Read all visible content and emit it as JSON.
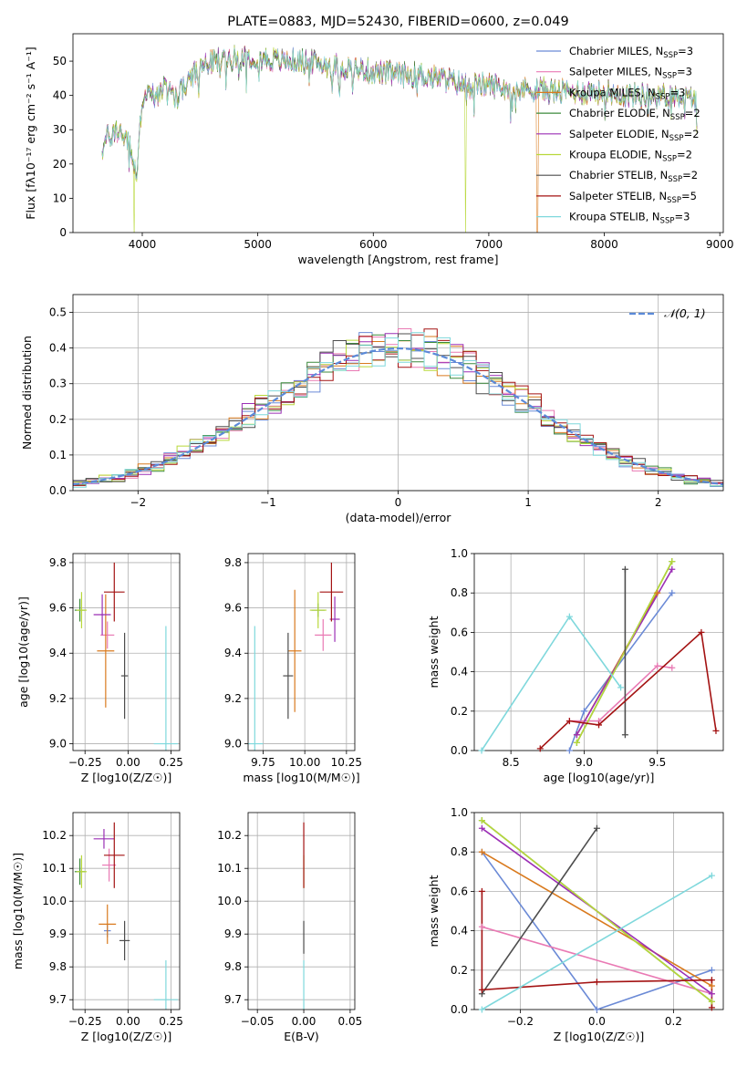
{
  "colors": {
    "chabrier_miles": "#6b8ad6",
    "salpeter_miles": "#e97ab4",
    "kroupa_miles": "#d97a1e",
    "chabrier_elodie": "#3c8a3c",
    "salpeter_elodie": "#9b2fb5",
    "kroupa_elodie": "#b8d83a",
    "chabrier_stelib": "#4d4d4d",
    "salpeter_stelib": "#a31212",
    "kroupa_stelib": "#7fd8dc",
    "gauss": "#5b8ad8"
  },
  "chart_data": [
    {
      "id": "spectrum",
      "type": "line",
      "title": "PLATE=0883, MJD=52430, FIBERID=0600, z=0.049",
      "xlabel": "wavelength [Angstrom, rest frame]",
      "ylabel": "Flux [fλ10⁻¹⁷ erg cm⁻² s⁻¹ A⁻¹]",
      "xlim": [
        3400,
        9030
      ],
      "ylim": [
        0,
        58
      ],
      "xticks": [
        4000,
        5000,
        6000,
        7000,
        8000,
        9000
      ],
      "yticks": [
        0,
        10,
        20,
        30,
        40,
        50
      ],
      "legend_position": "top-right",
      "legend": [
        "Chabrier MILES, N_SSP=3",
        "Salpeter MILES, N_SSP=3",
        "Kroupa MILES, N_SSP=3",
        "Chabrier ELODIE, N_SSP=2",
        "Salpeter ELODIE, N_SSP=2",
        "Kroupa ELODIE, N_SSP=2",
        "Chabrier STELIB, N_SSP=2",
        "Salpeter STELIB, N_SSP=5",
        "Kroupa STELIB, N_SSP=3"
      ],
      "legend_main": [
        "Chabrier MILES, N",
        "Salpeter MILES, N",
        "Kroupa MILES, N",
        "Chabrier ELODIE, N",
        "Salpeter ELODIE, N",
        "Kroupa ELODIE, N",
        "Chabrier STELIB, N",
        "Salpeter STELIB, N",
        "Kroupa STELIB, N"
      ],
      "legend_sub": "SSP",
      "legend_tail": [
        "=3",
        "=3",
        "=3",
        "=2",
        "=2",
        "=2",
        "=2",
        "=5",
        "=3"
      ],
      "continuum_x": [
        3650,
        3700,
        3800,
        3900,
        3950,
        4000,
        4100,
        4200,
        4300,
        4400,
        4500,
        4600,
        4800,
        5000,
        5200,
        5400,
        5600,
        5800,
        6000,
        6200,
        6400,
        6600,
        6800,
        7000,
        7200,
        7400,
        7600,
        7800,
        8000,
        8200,
        8400,
        8600,
        8800
      ],
      "continuum_y": [
        24,
        28,
        30,
        25,
        15,
        40,
        40,
        42,
        40,
        44,
        48,
        50,
        51,
        51,
        50,
        50,
        49,
        48,
        47,
        46,
        46,
        45,
        43,
        43,
        42,
        42,
        41,
        41,
        41,
        40,
        40,
        40,
        39
      ],
      "dropouts": [
        {
          "model": "kroupa_elodie",
          "wavelength": 3930
        },
        {
          "model": "kroupa_elodie",
          "wavelength": 6800
        },
        {
          "model": "kroupa_miles",
          "wavelength": 7420
        }
      ]
    },
    {
      "id": "residuals",
      "type": "histogram",
      "xlabel": "(data-model)/error",
      "ylabel": "Normed distribution",
      "xlim": [
        -2.5,
        2.5
      ],
      "ylim": [
        0,
        0.55
      ],
      "xticks": [
        -2,
        -1,
        0,
        1,
        2
      ],
      "yticks": [
        0.0,
        0.1,
        0.2,
        0.3,
        0.4,
        0.5
      ],
      "legend_position": "top-right",
      "gauss_label": "𝒩(0, 1)",
      "bin_width": 0.1
    },
    {
      "id": "age_vs_Z",
      "type": "errorbar",
      "xlabel": "Z [log10(Z/Z☉)]",
      "ylabel": "age  [log10(age/yr)]",
      "xlim": [
        -0.32,
        0.3
      ],
      "ylim": [
        8.97,
        9.84
      ],
      "xticks": [
        -0.25,
        0.0,
        0.25
      ],
      "yticks": [
        9.0,
        9.2,
        9.4,
        9.6,
        9.8
      ],
      "points": [
        {
          "model": "chabrier_miles",
          "x": -0.15,
          "y": 9.57,
          "xerr": 0.01,
          "yerr": 0.0
        },
        {
          "model": "salpeter_miles",
          "x": -0.12,
          "y": 9.48,
          "xerr": 0.04,
          "yerr": 0.06
        },
        {
          "model": "kroupa_miles",
          "x": -0.13,
          "y": 9.41,
          "xerr": 0.05,
          "yerr": 0.25
        },
        {
          "model": "chabrier_elodie",
          "x": -0.28,
          "y": 9.59,
          "xerr": 0.03,
          "yerr": 0.05
        },
        {
          "model": "salpeter_elodie",
          "x": -0.15,
          "y": 9.57,
          "xerr": 0.05,
          "yerr": 0.09
        },
        {
          "model": "kroupa_elodie",
          "x": -0.27,
          "y": 9.59,
          "xerr": 0.03,
          "yerr": 0.08
        },
        {
          "model": "chabrier_stelib",
          "x": -0.02,
          "y": 9.3,
          "xerr": 0.02,
          "yerr": 0.19
        },
        {
          "model": "salpeter_stelib",
          "x": -0.08,
          "y": 9.67,
          "xerr": 0.06,
          "yerr": 0.13
        },
        {
          "model": "kroupa_stelib",
          "x": 0.22,
          "y": 9.0,
          "xerr": 0.07,
          "yerr": 0.52
        }
      ]
    },
    {
      "id": "age_vs_mass",
      "type": "errorbar",
      "xlabel": "mass [log10(M/M☉)]",
      "xlim": [
        9.66,
        10.3
      ],
      "ylim": [
        8.97,
        9.84
      ],
      "xticks": [
        9.75,
        10.0,
        10.25
      ],
      "yticks": [
        9.0,
        9.2,
        9.4,
        9.6,
        9.8
      ],
      "points": [
        {
          "model": "chabrier_miles",
          "x": 9.97,
          "y": 9.41,
          "xerr": 0.0,
          "yerr": 0.0
        },
        {
          "model": "salpeter_miles",
          "x": 10.11,
          "y": 9.48,
          "xerr": 0.05,
          "yerr": 0.07
        },
        {
          "model": "kroupa_miles",
          "x": 9.94,
          "y": 9.41,
          "xerr": 0.04,
          "yerr": 0.27
        },
        {
          "model": "chabrier_elodie",
          "x": 10.08,
          "y": 9.59,
          "xerr": 0.04,
          "yerr": 0.03
        },
        {
          "model": "salpeter_elodie",
          "x": 10.18,
          "y": 9.55,
          "xerr": 0.03,
          "yerr": 0.1
        },
        {
          "model": "kroupa_elodie",
          "x": 10.08,
          "y": 9.59,
          "xerr": 0.05,
          "yerr": 0.08
        },
        {
          "model": "chabrier_stelib",
          "x": 9.9,
          "y": 9.3,
          "xerr": 0.03,
          "yerr": 0.19
        },
        {
          "model": "salpeter_stelib",
          "x": 10.16,
          "y": 9.67,
          "xerr": 0.07,
          "yerr": 0.13
        },
        {
          "model": "kroupa_stelib",
          "x": 9.7,
          "y": 9.0,
          "xerr": 0.05,
          "yerr": 0.52
        }
      ]
    },
    {
      "id": "weight_vs_age",
      "type": "line",
      "xlabel": "age  [log10(age/yr)]",
      "ylabel": "mass weight",
      "xlim": [
        8.25,
        9.95
      ],
      "ylim": [
        0,
        1
      ],
      "xticks": [
        8.5,
        9.0,
        9.5
      ],
      "yticks": [
        0.0,
        0.2,
        0.4,
        0.6,
        0.8,
        1.0
      ],
      "series": [
        {
          "model": "chabrier_miles",
          "x": [
            8.9,
            9.0,
            9.6
          ],
          "y": [
            0.0,
            0.2,
            0.8
          ]
        },
        {
          "model": "salpeter_miles",
          "x": [
            8.9,
            9.1,
            9.5,
            9.6
          ],
          "y": [
            0.15,
            0.15,
            0.43,
            0.42
          ]
        },
        {
          "model": "kroupa_miles",
          "x": [
            8.95,
            9.5
          ],
          "y": [
            0.08,
            0.8
          ]
        },
        {
          "model": "chabrier_elodie",
          "x": [
            8.95,
            9.6
          ],
          "y": [
            0.04,
            0.96
          ]
        },
        {
          "model": "salpeter_elodie",
          "x": [
            8.95,
            9.6
          ],
          "y": [
            0.08,
            0.92
          ]
        },
        {
          "model": "kroupa_elodie",
          "x": [
            8.95,
            9.6
          ],
          "y": [
            0.04,
            0.96
          ]
        },
        {
          "model": "chabrier_stelib",
          "x": [
            9.28,
            9.28
          ],
          "y": [
            0.08,
            0.92
          ]
        },
        {
          "model": "salpeter_stelib",
          "x": [
            8.7,
            8.9,
            9.1,
            9.8,
            9.9
          ],
          "y": [
            0.01,
            0.15,
            0.13,
            0.6,
            0.1
          ]
        },
        {
          "model": "kroupa_stelib",
          "x": [
            8.3,
            8.9,
            9.25
          ],
          "y": [
            0.0,
            0.68,
            0.32
          ]
        }
      ]
    },
    {
      "id": "mass_vs_Z",
      "type": "errorbar",
      "xlabel": "Z [log10(Z/Z☉)]",
      "ylabel": "mass [log10(M/M☉)]",
      "xlim": [
        -0.32,
        0.3
      ],
      "ylim": [
        9.67,
        10.27
      ],
      "xticks": [
        -0.25,
        0.0,
        0.25
      ],
      "yticks": [
        9.7,
        9.8,
        9.9,
        10.0,
        10.1,
        10.2
      ],
      "points": [
        {
          "model": "chabrier_miles",
          "x": -0.12,
          "y": 9.91,
          "xerr": 0.02,
          "yerr": 0.02
        },
        {
          "model": "salpeter_miles",
          "x": -0.11,
          "y": 10.11,
          "xerr": 0.04,
          "yerr": 0.05
        },
        {
          "model": "kroupa_miles",
          "x": -0.12,
          "y": 9.93,
          "xerr": 0.05,
          "yerr": 0.06
        },
        {
          "model": "chabrier_elodie",
          "x": -0.28,
          "y": 10.09,
          "xerr": 0.03,
          "yerr": 0.04
        },
        {
          "model": "salpeter_elodie",
          "x": -0.14,
          "y": 10.19,
          "xerr": 0.06,
          "yerr": 0.03
        },
        {
          "model": "kroupa_elodie",
          "x": -0.27,
          "y": 10.09,
          "xerr": 0.03,
          "yerr": 0.05
        },
        {
          "model": "chabrier_stelib",
          "x": -0.02,
          "y": 9.88,
          "xerr": 0.03,
          "yerr": 0.06
        },
        {
          "model": "salpeter_stelib",
          "x": -0.08,
          "y": 10.14,
          "xerr": 0.06,
          "yerr": 0.1
        },
        {
          "model": "kroupa_stelib",
          "x": 0.22,
          "y": 9.7,
          "xerr": 0.07,
          "yerr": 0.12
        }
      ]
    },
    {
      "id": "mass_vs_ebv",
      "type": "errorbar",
      "xlabel": "E(B-V)",
      "xlim": [
        -0.06,
        0.055
      ],
      "ylim": [
        9.67,
        10.27
      ],
      "xticks": [
        -0.05,
        0.0,
        0.05
      ],
      "yticks": [
        9.7,
        9.8,
        9.9,
        10.0,
        10.1,
        10.2
      ],
      "points": [
        {
          "model": "kroupa_elodie",
          "x": 0.0,
          "y": 10.09,
          "xerr": 0.0,
          "yerr": 0.05
        },
        {
          "model": "salpeter_stelib",
          "x": 0.0,
          "y": 10.14,
          "xerr": 0.0,
          "yerr": 0.1
        },
        {
          "model": "chabrier_stelib",
          "x": 0.0,
          "y": 9.89,
          "xerr": 0.0,
          "yerr": 0.05
        },
        {
          "model": "kroupa_stelib",
          "x": 0.0,
          "y": 9.7,
          "xerr": 0.0,
          "yerr": 0.12
        }
      ]
    },
    {
      "id": "weight_vs_Z",
      "type": "line",
      "xlabel": "Z [log10(Z/Z☉)]",
      "ylabel": "mass weight",
      "xlim": [
        -0.32,
        0.33
      ],
      "ylim": [
        0,
        1
      ],
      "xticks": [
        -0.2,
        0.0,
        0.2
      ],
      "yticks": [
        0.0,
        0.2,
        0.4,
        0.6,
        0.8,
        1.0
      ],
      "series": [
        {
          "model": "chabrier_miles",
          "x": [
            -0.3,
            0.0,
            0.3
          ],
          "y": [
            0.8,
            0.0,
            0.2
          ]
        },
        {
          "model": "salpeter_miles",
          "x": [
            -0.3,
            0.3
          ],
          "y": [
            0.42,
            0.08
          ]
        },
        {
          "model": "kroupa_miles",
          "x": [
            -0.3,
            0.3
          ],
          "y": [
            0.8,
            0.12
          ]
        },
        {
          "model": "chabrier_elodie",
          "x": [
            -0.3,
            0.3
          ],
          "y": [
            0.96,
            0.04
          ]
        },
        {
          "model": "salpeter_elodie",
          "x": [
            -0.3,
            0.3
          ],
          "y": [
            0.92,
            0.08
          ]
        },
        {
          "model": "kroupa_elodie",
          "x": [
            -0.3,
            0.3
          ],
          "y": [
            0.96,
            0.04
          ]
        },
        {
          "model": "chabrier_stelib",
          "x": [
            -0.3,
            0.0
          ],
          "y": [
            0.08,
            0.92
          ]
        },
        {
          "model": "salpeter_stelib",
          "x": [
            -0.3,
            -0.3,
            0.0,
            0.3,
            0.3
          ],
          "y": [
            0.6,
            0.1,
            0.14,
            0.15,
            0.01
          ]
        },
        {
          "model": "kroupa_stelib",
          "x": [
            -0.3,
            0.3
          ],
          "y": [
            0.0,
            0.68
          ]
        }
      ]
    }
  ]
}
